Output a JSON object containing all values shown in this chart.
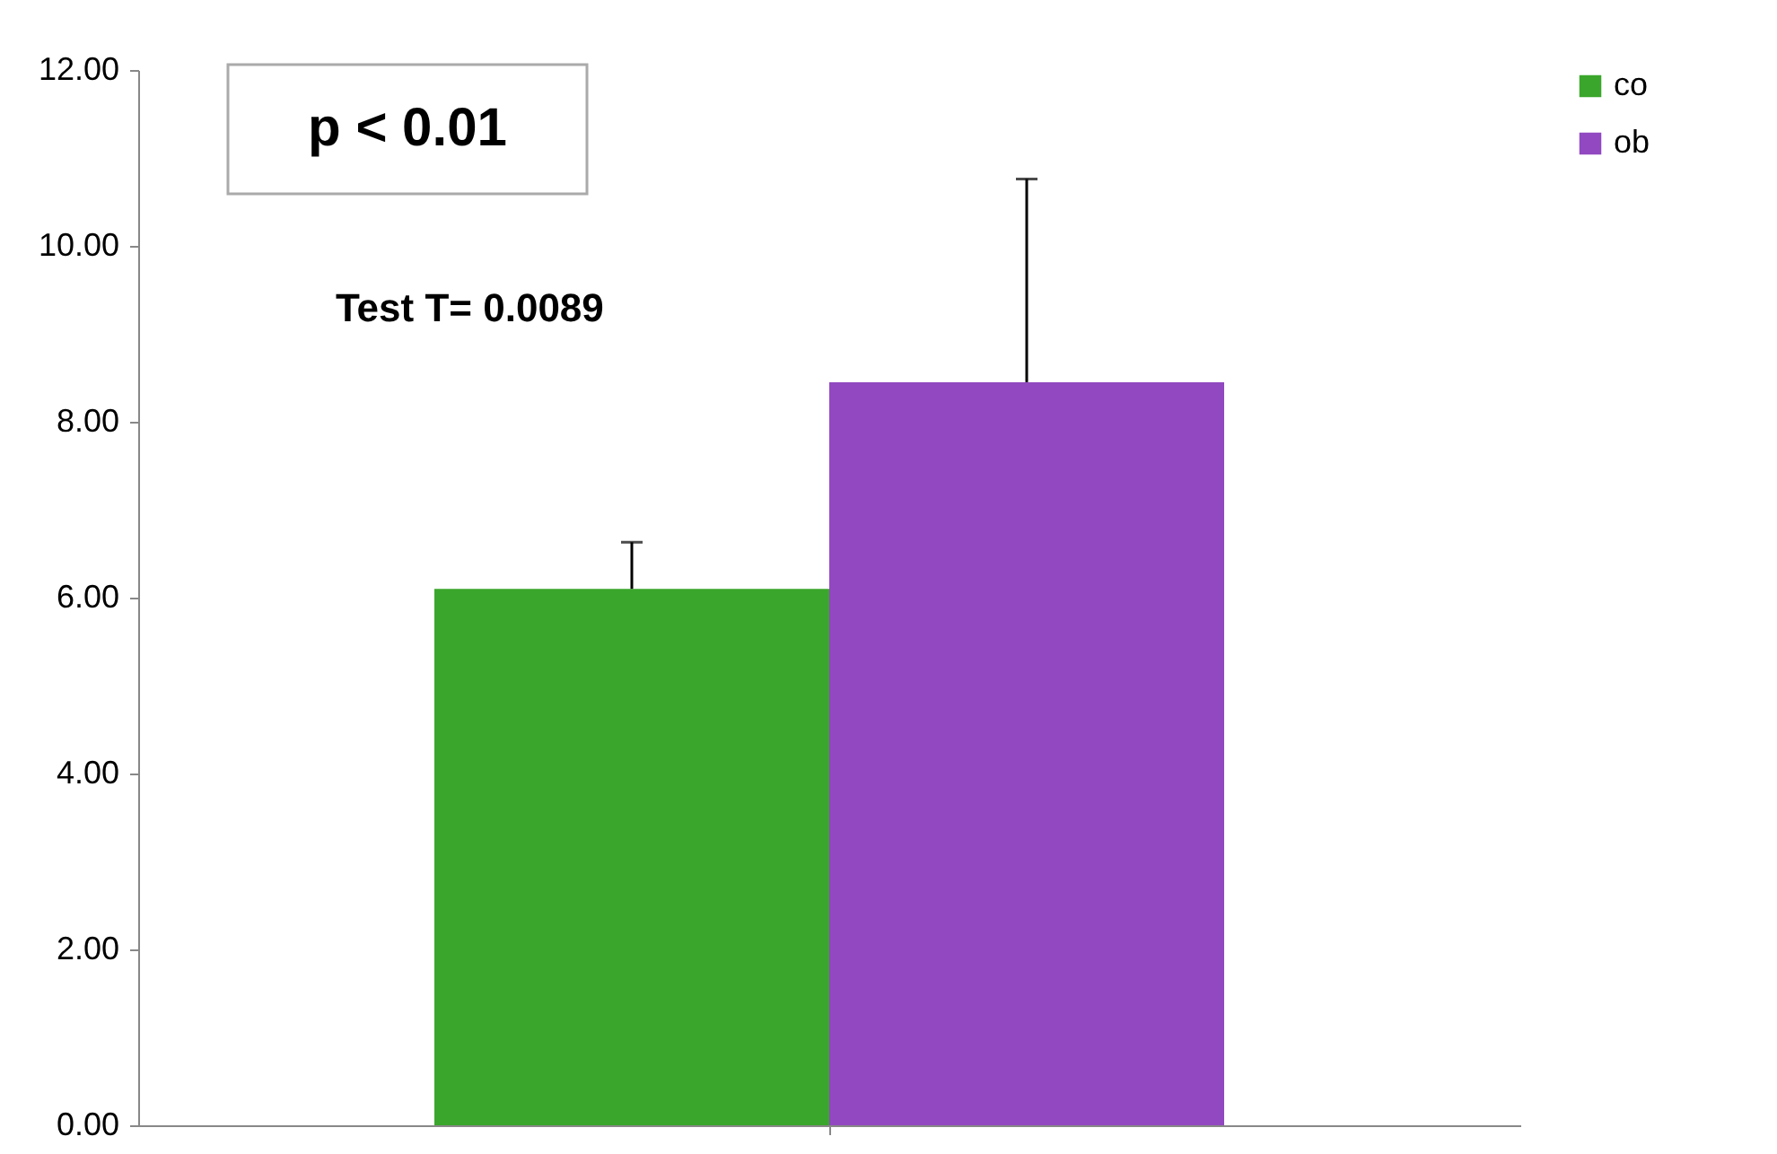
{
  "chart_data": {
    "type": "bar",
    "categories": [
      null
    ],
    "series": [
      {
        "name": "co",
        "color": "#3aa62b",
        "values": [
          6.1
        ],
        "errors": [
          [
            6.1,
            6.63
          ]
        ]
      },
      {
        "name": "ob",
        "color": "#9148c0",
        "values": [
          8.45
        ],
        "errors": [
          [
            8.45,
            10.76
          ]
        ]
      }
    ],
    "ylim": [
      0,
      12
    ],
    "yticks": [
      {
        "value": 0,
        "label": "0.00"
      },
      {
        "value": 2,
        "label": "2.00"
      },
      {
        "value": 4,
        "label": "4.00"
      },
      {
        "value": 6,
        "label": "6.00"
      },
      {
        "value": 8,
        "label": "8.00"
      },
      {
        "value": 10,
        "label": "10.00"
      },
      {
        "value": 12,
        "label": "12.00"
      }
    ],
    "annotations": [
      "p < 0.01",
      "Test T= 0.0089"
    ],
    "grid": false,
    "legend": "right"
  }
}
